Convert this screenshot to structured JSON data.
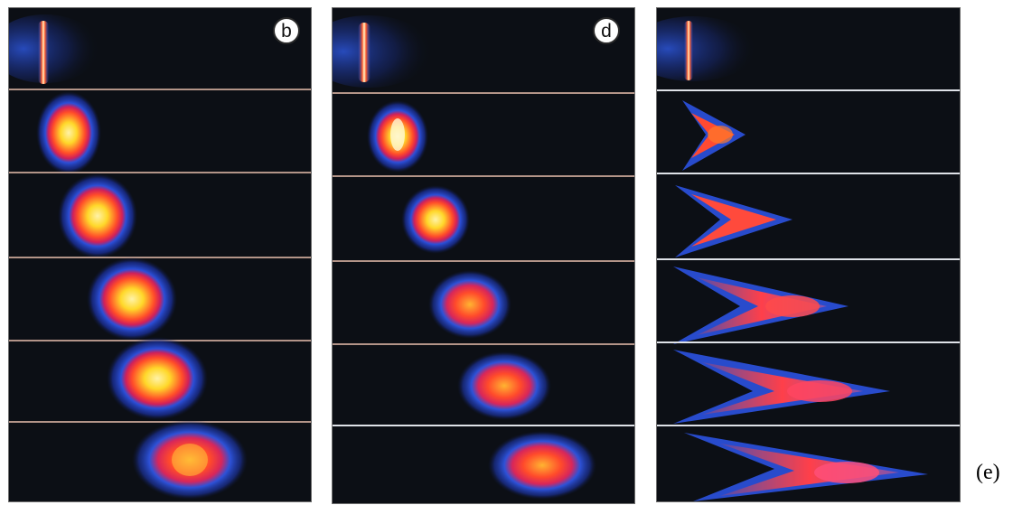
{
  "figure": {
    "columns": [
      {
        "id": "b",
        "label": "b",
        "frame_count": 6,
        "separator_color": "#b39488"
      },
      {
        "id": "d",
        "label": "d",
        "frame_count": 6,
        "separator_color": "#b39488"
      },
      {
        "id": "e",
        "label": "",
        "frame_count": 6,
        "separator_color": "#dfe2e8"
      }
    ],
    "caption": "(e)"
  }
}
